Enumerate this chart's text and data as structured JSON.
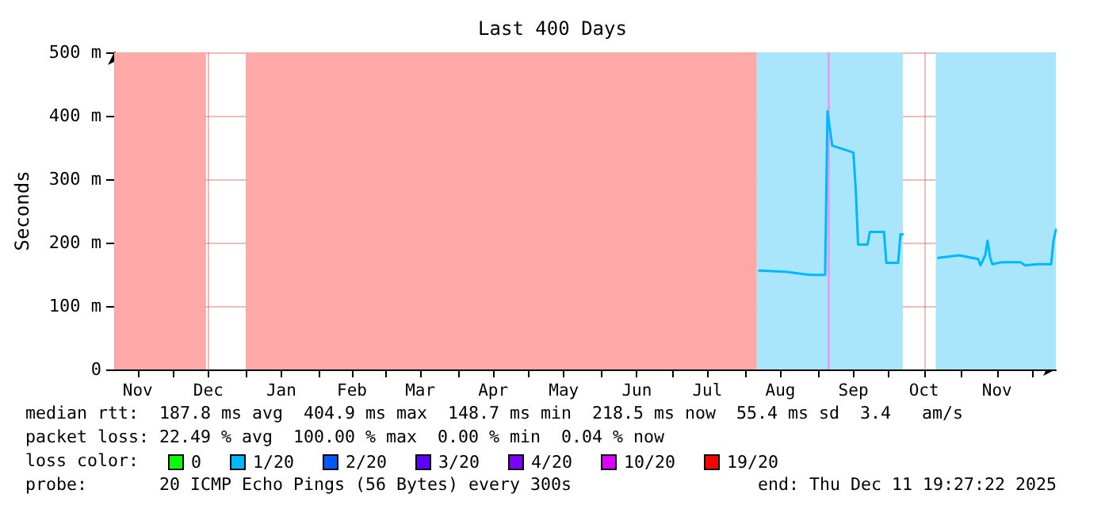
{
  "chart_data": {
    "type": "line",
    "title": "Last 400 Days",
    "ylabel": "Seconds",
    "xlim": [
      "2024-11-06",
      "2025-12-11"
    ],
    "xticks": [
      {
        "value": "2024-11-16",
        "label": "Nov"
      },
      {
        "value": "2024-12-16",
        "label": "Dec"
      },
      {
        "value": "2025-01-16",
        "label": "Jan"
      },
      {
        "value": "2025-02-15",
        "label": "Feb"
      },
      {
        "value": "2025-03-16",
        "label": "Mar"
      },
      {
        "value": "2025-04-16",
        "label": "Apr"
      },
      {
        "value": "2025-05-16",
        "label": "May"
      },
      {
        "value": "2025-06-16",
        "label": "Jun"
      },
      {
        "value": "2025-07-16",
        "label": "Jul"
      },
      {
        "value": "2025-08-16",
        "label": "Aug"
      },
      {
        "value": "2025-09-16",
        "label": "Sep"
      },
      {
        "value": "2025-10-16",
        "label": "Oct"
      },
      {
        "value": "2025-11-16",
        "label": "Nov"
      },
      {
        "value": "2024-12-01",
        "label": null
      },
      {
        "value": "2025-01-01",
        "label": null
      },
      {
        "value": "2025-02-01",
        "label": null
      },
      {
        "value": "2025-03-01",
        "label": null
      },
      {
        "value": "2025-04-01",
        "label": null
      },
      {
        "value": "2025-05-01",
        "label": null
      },
      {
        "value": "2025-06-01",
        "label": null
      },
      {
        "value": "2025-07-01",
        "label": null
      },
      {
        "value": "2025-08-01",
        "label": null
      },
      {
        "value": "2025-09-01",
        "label": null
      },
      {
        "value": "2025-10-01",
        "label": null
      },
      {
        "value": "2025-11-01",
        "label": null
      },
      {
        "value": "2025-12-01",
        "label": null
      }
    ],
    "ylim": [
      0,
      500
    ],
    "yticks": [
      0,
      {
        "value": 100,
        "label": "100 m"
      },
      {
        "value": 200,
        "label": "200 m"
      },
      {
        "value": 300,
        "label": "300 m"
      },
      {
        "value": 400,
        "label": "400 m"
      },
      {
        "value": 500,
        "label": "500 m"
      }
    ],
    "grid": true,
    "legend": "bottom",
    "marker": "none",
    "line_style": "solid",
    "bands": [
      {
        "axis": "x",
        "from": "2024-11-06",
        "to": "2024-12-15",
        "color": "#ffa8a8"
      },
      {
        "axis": "x",
        "from": "2025-01-01",
        "to": "2025-08-06",
        "color": "#ffa8a8"
      },
      {
        "axis": "x",
        "from": "2025-08-06",
        "to": "2025-10-07",
        "color": "#aae6fb"
      },
      {
        "axis": "x",
        "from": "2025-09-05",
        "to": "2025-09-06",
        "color": "#dda0f0"
      },
      {
        "axis": "x",
        "from": "2025-10-21",
        "to": "2025-12-11",
        "color": "#aae6fb"
      }
    ],
    "series": [
      {
        "name": "0",
        "color": "#00ff00"
      },
      {
        "name": "1/20",
        "color": "#00b8ff",
        "x": [
          "2025-08-07",
          "2025-08-18",
          "2025-08-29",
          "2025-09-04",
          "2025-09-05",
          "2025-09-07",
          "2025-09-16",
          "2025-09-17",
          "2025-09-18",
          "2025-09-22",
          "2025-09-23",
          "2025-09-29",
          "2025-09-30",
          "2025-10-05",
          "2025-10-06",
          "2025-10-07",
          "2025-10-14",
          "2025-10-22",
          "2025-10-31",
          "2025-11-08",
          "2025-11-09",
          "2025-11-11",
          "2025-11-12",
          "2025-11-13",
          "2025-11-14",
          "2025-11-18",
          "2025-11-26",
          "2025-11-28",
          "2025-12-03",
          "2025-12-09",
          "2025-12-10",
          "2025-12-11"
        ],
        "values": [
          156,
          154,
          149,
          149,
          407,
          353,
          342,
          284,
          197,
          197,
          217,
          217,
          168,
          168,
          213,
          213,
          null,
          176,
          180,
          174,
          164,
          180,
          203,
          178,
          166,
          169,
          169,
          164,
          166,
          166,
          203,
          220
        ]
      },
      {
        "name": "2/20",
        "color": "#0059ff"
      },
      {
        "name": "3/20",
        "color": "#5e00ff"
      },
      {
        "name": "4/20",
        "color": "#7e00ff"
      },
      {
        "name": "10/20",
        "color": "#dd00ff"
      },
      {
        "name": "19/20",
        "color": "#ff0000"
      }
    ],
    "annotations": [
      "median rtt:  187.8 ms avg  404.9 ms max  148.7 ms min  218.5 ms now  55.4 ms sd  3.4   am/s",
      "packet loss: 22.49 % avg  100.00 % max  0.00 % min  0.04 % now",
      "loss color:",
      "probe:       20 ICMP Echo Pings (56 Bytes) every 300s",
      "end: Thu Dec 11 19:27:22 2025"
    ]
  }
}
